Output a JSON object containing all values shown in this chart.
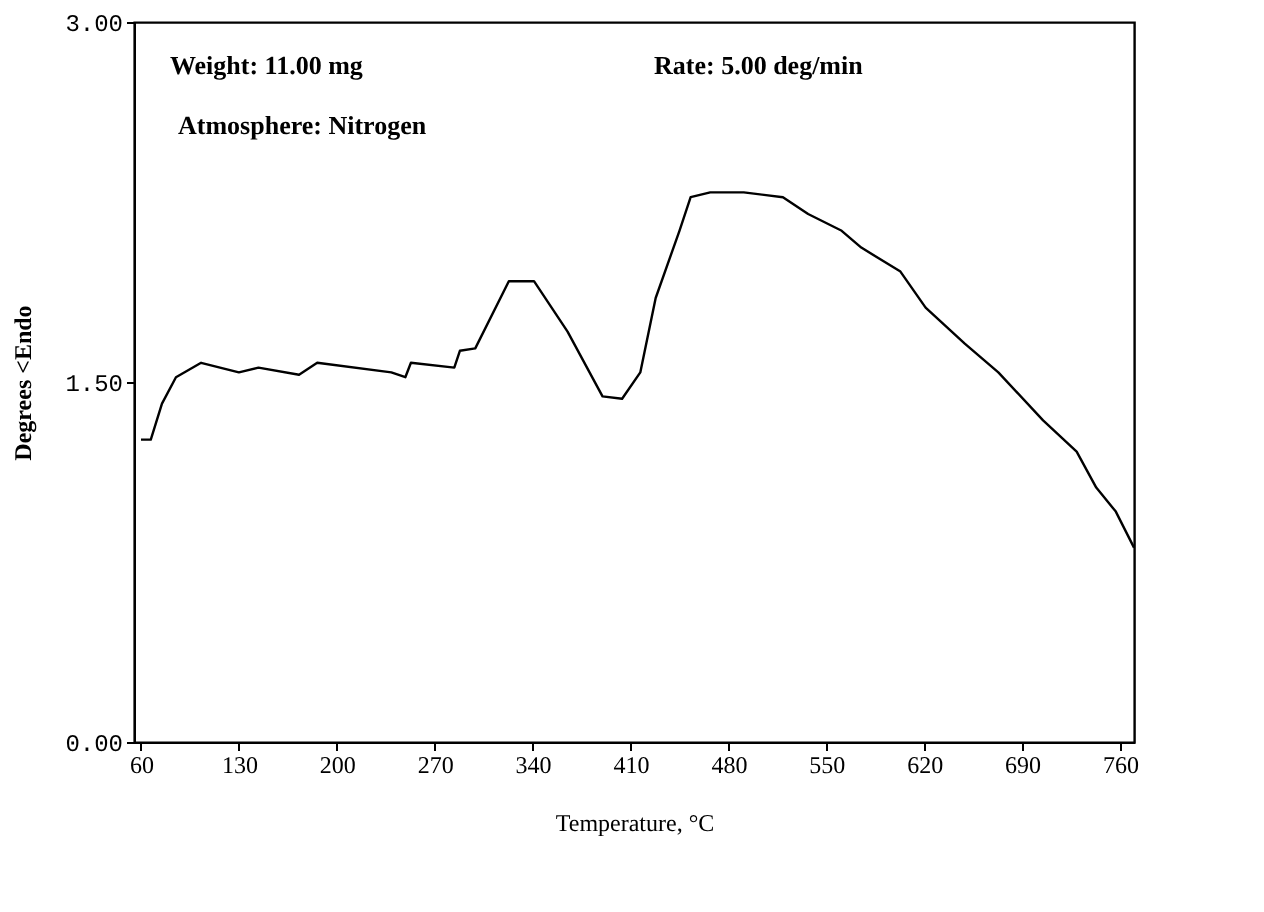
{
  "chart_data": {
    "type": "line",
    "xlabel": "Temperature, °C",
    "ylabel": "Degrees     <Endo",
    "annotations": [
      "Weight:  11.00 mg",
      "Rate:  5.00 deg/min",
      "Atmosphere:  Nitrogen"
    ],
    "xlim": [
      55,
      770
    ],
    "xticks": [
      60,
      130,
      200,
      270,
      340,
      410,
      480,
      550,
      620,
      690,
      760
    ],
    "ylim": [
      0,
      3
    ],
    "yticks": [
      {
        "value": 0,
        "label": "0.00"
      },
      {
        "value": 1.5,
        "label": "1.50"
      },
      {
        "value": 3,
        "label": "3.00"
      }
    ],
    "grid": false,
    "marker": "none",
    "line_style": "solid",
    "series": [
      {
        "color": "#000000",
        "x": [
          60,
          67,
          75,
          85,
          103,
          130,
          144,
          173,
          186,
          239,
          249,
          253,
          284,
          288,
          299,
          323,
          341,
          365,
          390,
          404,
          417,
          428,
          445,
          453,
          467,
          491,
          519,
          537,
          561,
          575,
          603,
          621,
          649,
          673,
          705,
          729,
          743,
          757,
          770
        ],
        "values": [
          1.26,
          1.26,
          1.41,
          1.52,
          1.58,
          1.54,
          1.56,
          1.53,
          1.58,
          1.54,
          1.52,
          1.58,
          1.56,
          1.63,
          1.64,
          1.92,
          1.92,
          1.71,
          1.44,
          1.43,
          1.54,
          1.85,
          2.13,
          2.27,
          2.29,
          2.29,
          2.27,
          2.2,
          2.13,
          2.06,
          1.96,
          1.81,
          1.66,
          1.54,
          1.34,
          1.21,
          1.06,
          0.96,
          0.81
        ]
      }
    ]
  }
}
